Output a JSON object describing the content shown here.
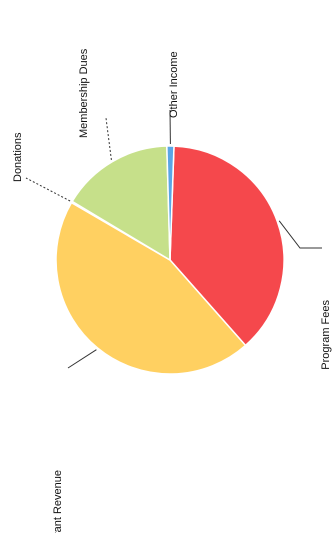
{
  "chart_data": {
    "type": "pie",
    "categories": [
      "Program Fees",
      "Grant Revenue",
      "Donations",
      "Membership Dues",
      "Other Income"
    ],
    "values": [
      38,
      45,
      0.2,
      16,
      1
    ],
    "colors": [
      "#f5484c",
      "#ffd061",
      "#d8e89a",
      "#c6e08a",
      "#5aa6e6"
    ],
    "title": "",
    "legend": "none",
    "label_placement": "outside-with-leader-lines"
  }
}
